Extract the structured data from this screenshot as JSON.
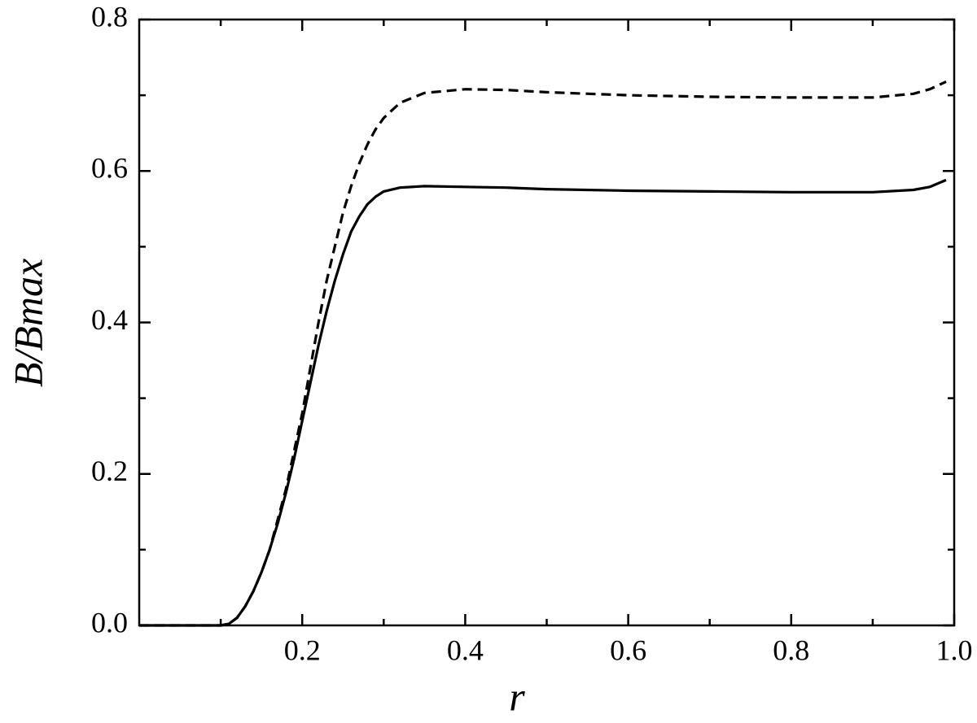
{
  "chart_data": {
    "type": "line",
    "x_label": "r",
    "y_label": "B/Bmax",
    "x": [
      0,
      0.1,
      0.11,
      0.12,
      0.13,
      0.14,
      0.15,
      0.16,
      0.17,
      0.18,
      0.19,
      0.2,
      0.21,
      0.22,
      0.23,
      0.24,
      0.25,
      0.26,
      0.27,
      0.28,
      0.29,
      0.3,
      0.32,
      0.35,
      0.4,
      0.45,
      0.5,
      0.6,
      0.7,
      0.8,
      0.9,
      0.95,
      0.97,
      0.99
    ],
    "series": [
      {
        "color": "#000000",
        "dash": false,
        "values": [
          0,
          0,
          0.002,
          0.01,
          0.025,
          0.045,
          0.07,
          0.1,
          0.135,
          0.175,
          0.22,
          0.27,
          0.32,
          0.37,
          0.415,
          0.455,
          0.49,
          0.52,
          0.54,
          0.556,
          0.566,
          0.573,
          0.578,
          0.58,
          0.579,
          0.578,
          0.576,
          0.574,
          0.573,
          0.572,
          0.572,
          0.575,
          0.579,
          0.588
        ]
      },
      {
        "color": "#000000",
        "dash": true,
        "values": [
          0,
          0,
          0.002,
          0.01,
          0.025,
          0.045,
          0.07,
          0.1,
          0.14,
          0.18,
          0.23,
          0.28,
          0.34,
          0.4,
          0.455,
          0.5,
          0.545,
          0.58,
          0.61,
          0.635,
          0.655,
          0.67,
          0.69,
          0.703,
          0.708,
          0.707,
          0.704,
          0.7,
          0.698,
          0.697,
          0.697,
          0.702,
          0.708,
          0.718
        ]
      }
    ],
    "xlim": [
      0,
      1
    ],
    "ylim": [
      0,
      0.8
    ],
    "xticks": [
      0.2,
      0.4,
      0.6,
      0.8,
      {
        "value": 1,
        "label": "1.0"
      }
    ],
    "yticks": [
      {
        "value": 0,
        "label": "0.0"
      },
      0.2,
      0.4,
      0.6,
      0.8
    ],
    "xminorticks": [
      0.1,
      0.3,
      0.5,
      0.7,
      0.9
    ],
    "yminorticks": [
      0.1,
      0.3,
      0.5,
      0.7
    ],
    "grid": false
  }
}
